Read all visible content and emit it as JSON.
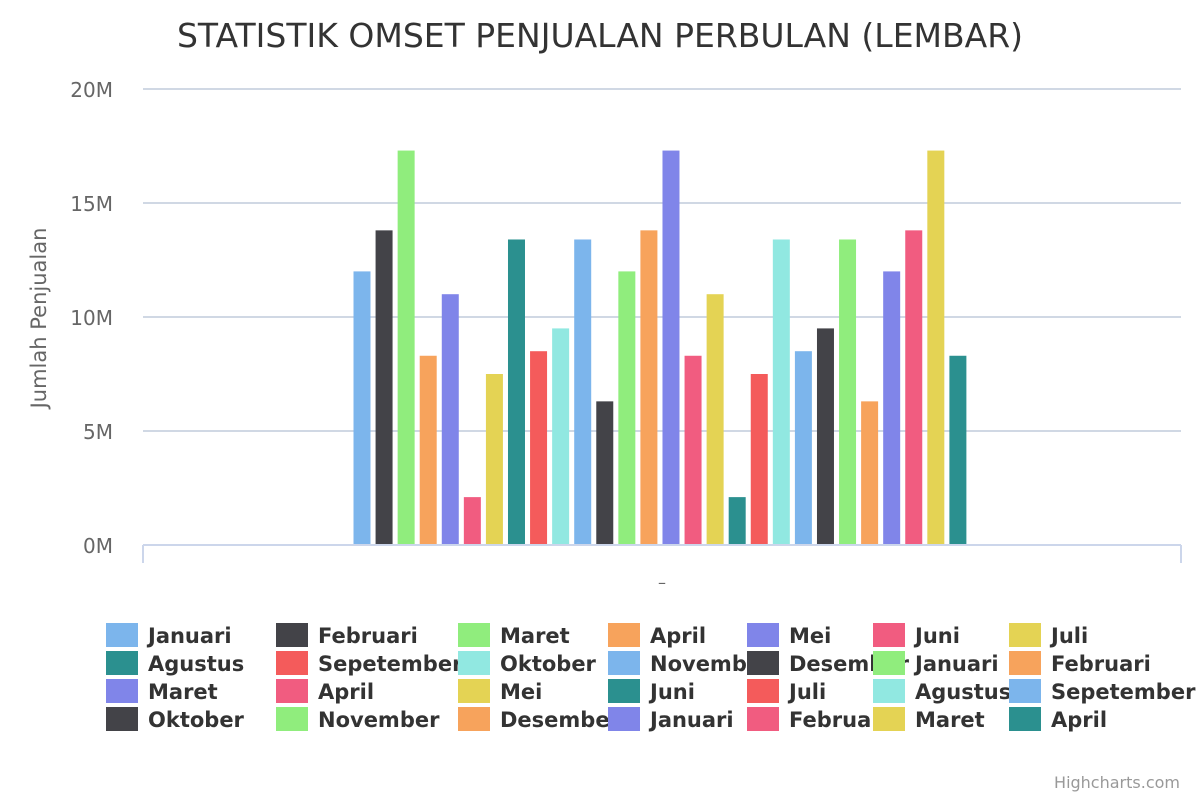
{
  "chart_data": {
    "type": "bar",
    "title": "STATISTIK OMSET PENJUALAN PERBULAN (LEMBAR)",
    "xlabel": "",
    "ylabel": "Jumlah Penjualan",
    "category_label": "–",
    "ylim": [
      0,
      20000000
    ],
    "y_ticks": [
      {
        "value": 0,
        "label": "0M"
      },
      {
        "value": 5000000,
        "label": "5M"
      },
      {
        "value": 10000000,
        "label": "10M"
      },
      {
        "value": 15000000,
        "label": "15M"
      },
      {
        "value": 20000000,
        "label": "20M"
      }
    ],
    "grid": true,
    "legend_position": "bottom",
    "series": [
      {
        "name": "Januari",
        "value": 12000000,
        "color": "#7cb5ec"
      },
      {
        "name": "Februari",
        "value": 13800000,
        "color": "#434348"
      },
      {
        "name": "Maret",
        "value": 17300000,
        "color": "#90ed7d"
      },
      {
        "name": "April",
        "value": 8300000,
        "color": "#f7a35c"
      },
      {
        "name": "Mei",
        "value": 11000000,
        "color": "#8085e9"
      },
      {
        "name": "Juni",
        "value": 2100000,
        "color": "#f15c80"
      },
      {
        "name": "Juli",
        "value": 7500000,
        "color": "#e4d354"
      },
      {
        "name": "Agustus",
        "value": 13400000,
        "color": "#2b908f"
      },
      {
        "name": "Sepetember",
        "value": 8500000,
        "color": "#f45b5b"
      },
      {
        "name": "Oktober",
        "value": 9500000,
        "color": "#91e8e1"
      },
      {
        "name": "November",
        "value": 13400000,
        "color": "#7cb5ec"
      },
      {
        "name": "Desember",
        "value": 6300000,
        "color": "#434348"
      },
      {
        "name": "Januari",
        "value": 12000000,
        "color": "#90ed7d"
      },
      {
        "name": "Februari",
        "value": 13800000,
        "color": "#f7a35c"
      },
      {
        "name": "Maret",
        "value": 17300000,
        "color": "#8085e9"
      },
      {
        "name": "April",
        "value": 8300000,
        "color": "#f15c80"
      },
      {
        "name": "Mei",
        "value": 11000000,
        "color": "#e4d354"
      },
      {
        "name": "Juni",
        "value": 2100000,
        "color": "#2b908f"
      },
      {
        "name": "Juli",
        "value": 7500000,
        "color": "#f45b5b"
      },
      {
        "name": "Agustus",
        "value": 13400000,
        "color": "#91e8e1"
      },
      {
        "name": "Sepetember",
        "value": 8500000,
        "color": "#7cb5ec"
      },
      {
        "name": "Oktober",
        "value": 9500000,
        "color": "#434348"
      },
      {
        "name": "November",
        "value": 13400000,
        "color": "#90ed7d"
      },
      {
        "name": "Desember",
        "value": 6300000,
        "color": "#f7a35c"
      },
      {
        "name": "Januari",
        "value": 12000000,
        "color": "#8085e9"
      },
      {
        "name": "Februari",
        "value": 13800000,
        "color": "#f15c80"
      },
      {
        "name": "Maret",
        "value": 17300000,
        "color": "#e4d354"
      },
      {
        "name": "April",
        "value": 8300000,
        "color": "#2b908f"
      }
    ]
  },
  "credits": "Highcharts.com"
}
